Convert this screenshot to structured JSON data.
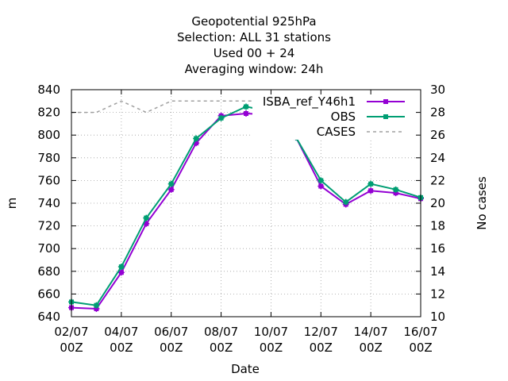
{
  "chart_data": {
    "type": "line",
    "title": [
      "Geopotential 925hPa",
      "Selection: ALL      31 stations",
      "Used  00 + 24",
      "Averaging window: 24h"
    ],
    "xlabel": "Date",
    "ylabel": "m",
    "y2label": "No cases",
    "x_tick_labels": [
      [
        "02/07",
        "00Z"
      ],
      [
        "04/07",
        "00Z"
      ],
      [
        "06/07",
        "00Z"
      ],
      [
        "08/07",
        "00Z"
      ],
      [
        "10/07",
        "00Z"
      ],
      [
        "12/07",
        "00Z"
      ],
      [
        "14/07",
        "00Z"
      ],
      [
        "16/07",
        "00Z"
      ]
    ],
    "xlim": [
      0,
      14
    ],
    "ylim": [
      640,
      840
    ],
    "y_ticks": [
      640,
      660,
      680,
      700,
      720,
      740,
      760,
      780,
      800,
      820,
      840
    ],
    "y2lim": [
      10,
      30
    ],
    "y2_ticks": [
      10,
      12,
      14,
      16,
      18,
      20,
      22,
      24,
      26,
      28,
      30
    ],
    "grid": true,
    "legend_position": "top-right",
    "series": [
      {
        "name": "ISBA_ref_Y46h1",
        "color": "#9400d3",
        "axis": "y",
        "marker": "square",
        "x": [
          0,
          1,
          2,
          3,
          4,
          5,
          6,
          7,
          8,
          9,
          10,
          11,
          12,
          13,
          14
        ],
        "values": [
          648,
          647,
          679,
          722,
          752,
          793,
          817,
          819,
          818,
          798,
          755,
          739,
          751,
          749,
          744
        ]
      },
      {
        "name": "OBS",
        "color": "#009e73",
        "axis": "y",
        "marker": "square",
        "x": [
          0,
          1,
          2,
          3,
          4,
          5,
          6,
          7,
          8,
          9,
          10,
          11,
          12,
          13,
          14
        ],
        "values": [
          653,
          650,
          684,
          727,
          757,
          797,
          815,
          825,
          821,
          798,
          760,
          741,
          757,
          752,
          745
        ]
      },
      {
        "name": "CASES",
        "color": "#a0a0a0",
        "axis": "y2",
        "dashed": true,
        "x": [
          0,
          1,
          2,
          3,
          4,
          5,
          6,
          7,
          8,
          9,
          10,
          11,
          12,
          13,
          14
        ],
        "values": [
          28,
          28,
          29,
          28,
          29,
          29,
          29,
          29,
          29,
          28,
          28,
          28,
          29,
          29,
          29
        ]
      }
    ]
  }
}
